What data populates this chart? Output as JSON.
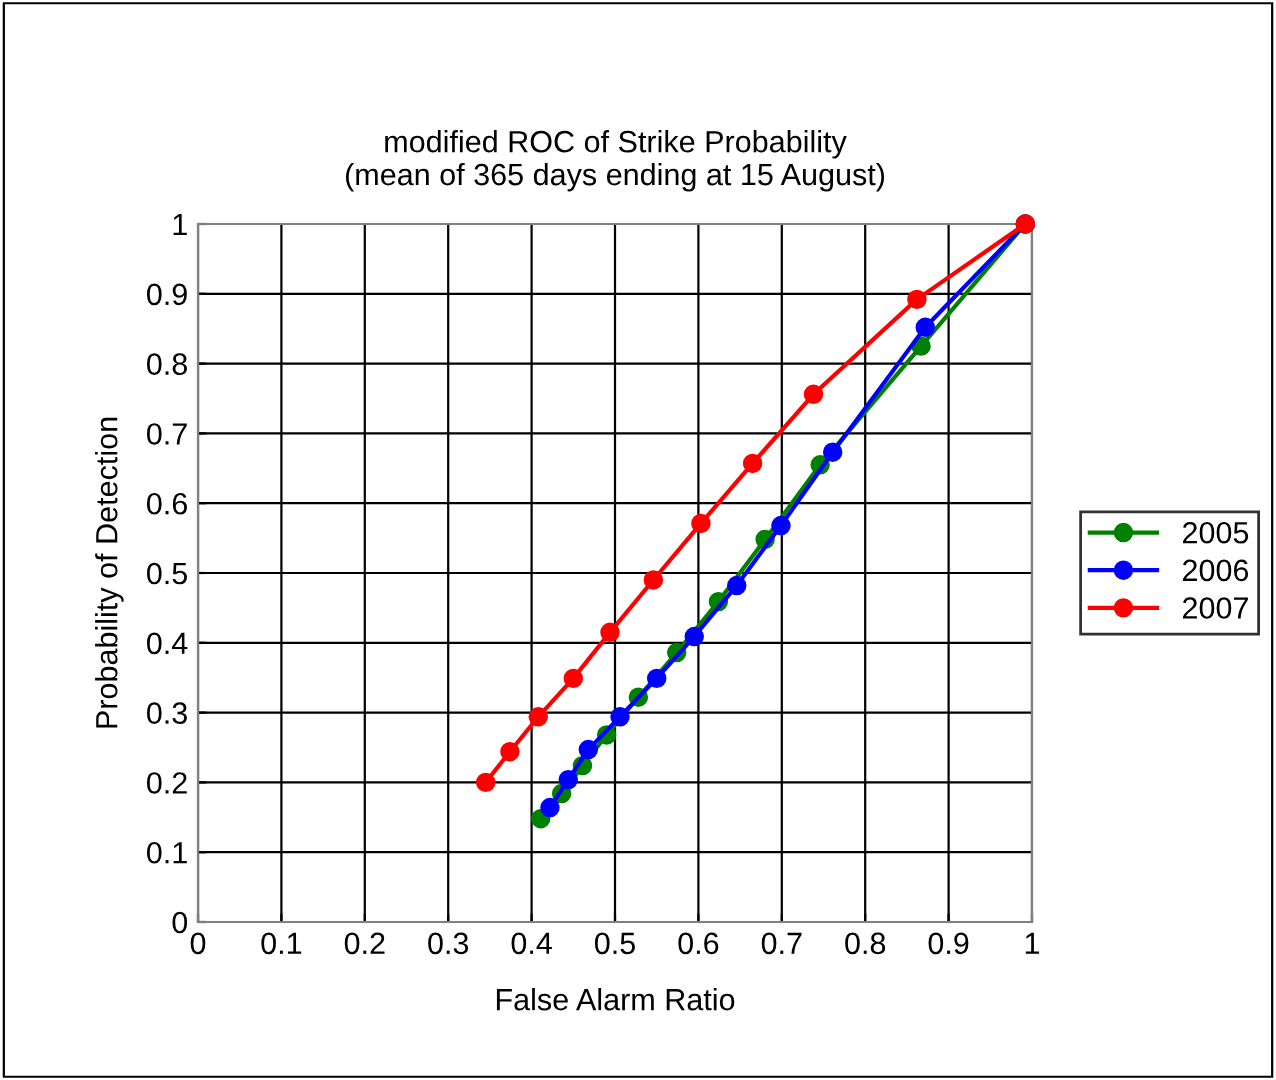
{
  "chart_data": {
    "type": "line",
    "title": "modified ROC of Strike Probability\n(mean of 365 days ending at 15 August)",
    "xlabel": "False Alarm Ratio",
    "ylabel": "Probability of Detection",
    "xlim": [
      0,
      1
    ],
    "ylim": [
      0,
      1
    ],
    "xticks": [
      0,
      0.1,
      0.2,
      0.3,
      0.4,
      0.5,
      0.6,
      0.7,
      0.8,
      0.9,
      1
    ],
    "yticks": [
      0,
      0.1,
      0.2,
      0.3,
      0.4,
      0.5,
      0.6,
      0.7,
      0.8,
      0.9,
      1
    ],
    "grid": true,
    "legend": "right",
    "marker": "circle",
    "line_style": "solid",
    "series": [
      {
        "name": "2005",
        "color": "#008000",
        "x": [
          0.411,
          0.436,
          0.461,
          0.49,
          0.528,
          0.574,
          0.624,
          0.68,
          0.746,
          0.867,
          0.992
        ],
        "values": [
          0.148,
          0.184,
          0.224,
          0.268,
          0.322,
          0.386,
          0.459,
          0.548,
          0.655,
          0.825,
          1.0
        ]
      },
      {
        "name": "2006",
        "color": "#0000ff",
        "x": [
          0.422,
          0.444,
          0.468,
          0.506,
          0.55,
          0.595,
          0.646,
          0.699,
          0.761,
          0.872,
          0.992
        ],
        "values": [
          0.164,
          0.204,
          0.247,
          0.294,
          0.349,
          0.409,
          0.482,
          0.568,
          0.673,
          0.852,
          1.0
        ]
      },
      {
        "name": "2007",
        "color": "#ff0000",
        "x": [
          0.345,
          0.374,
          0.408,
          0.45,
          0.494,
          0.546,
          0.603,
          0.665,
          0.738,
          0.862,
          0.992
        ],
        "values": [
          0.2,
          0.244,
          0.294,
          0.349,
          0.415,
          0.49,
          0.571,
          0.657,
          0.756,
          0.892,
          1.0
        ]
      }
    ]
  }
}
